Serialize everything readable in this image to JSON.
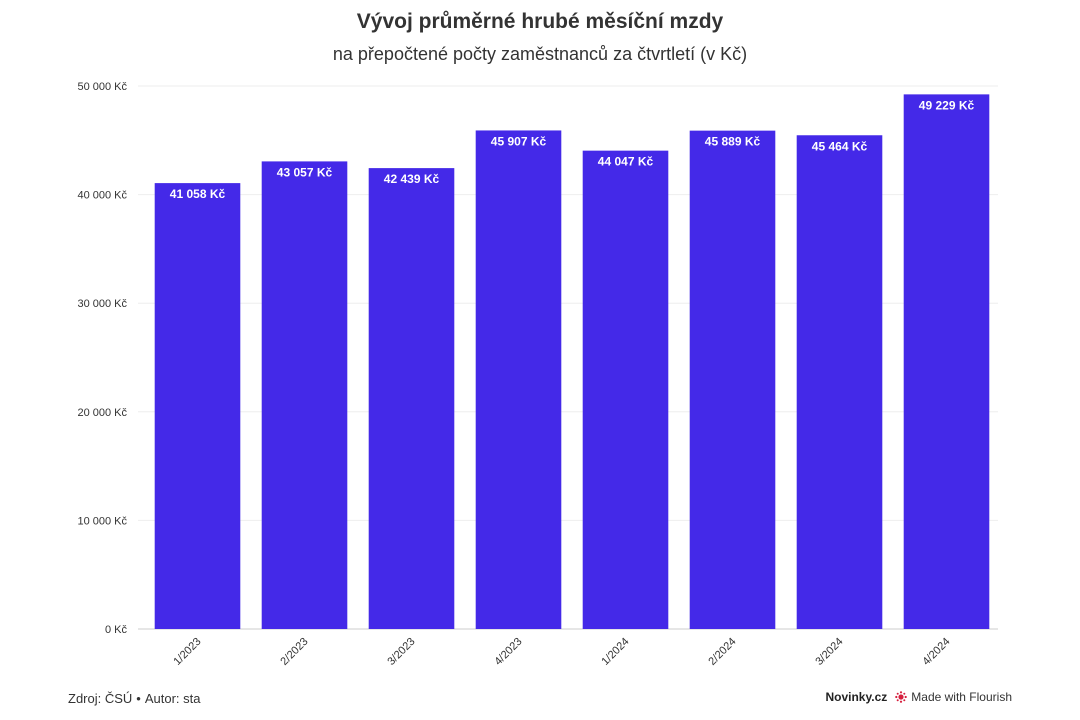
{
  "title": "Vývoj průměrné hrubé měsíční mzdy",
  "subtitle": "na přepočtené počty zaměstnanců za čtvrtletí (v Kč)",
  "footer": {
    "source": "Zdroj: ČSÚ",
    "separator": "•",
    "author": "Autor: sta",
    "brand": "Novinky.cz",
    "made_with": "Made with Flourish"
  },
  "colors": {
    "bar": "#4429e8",
    "grid": "#eeeeee",
    "text": "#333333",
    "flourish": "#d6203e"
  },
  "chart_data": {
    "type": "bar",
    "categories": [
      "1/2023",
      "2/2023",
      "3/2023",
      "4/2023",
      "1/2024",
      "2/2024",
      "3/2024",
      "4/2024"
    ],
    "values": [
      41058,
      43057,
      42439,
      45907,
      44047,
      45889,
      45464,
      49229
    ],
    "data_labels": [
      "41 058 Kč",
      "43 057 Kč",
      "42 439 Kč",
      "45 907 Kč",
      "44 047 Kč",
      "45 889 Kč",
      "45 464 Kč",
      "49 229 Kč"
    ],
    "y_ticks": [
      0,
      10000,
      20000,
      30000,
      40000,
      50000
    ],
    "y_tick_labels": [
      "0 Kč",
      "10 000 Kč",
      "20 000 Kč",
      "30 000 Kč",
      "40 000 Kč",
      "50 000 Kč"
    ],
    "ylim": [
      0,
      50000
    ],
    "xlabel": "",
    "ylabel": "",
    "grid": true,
    "legend": "none"
  }
}
